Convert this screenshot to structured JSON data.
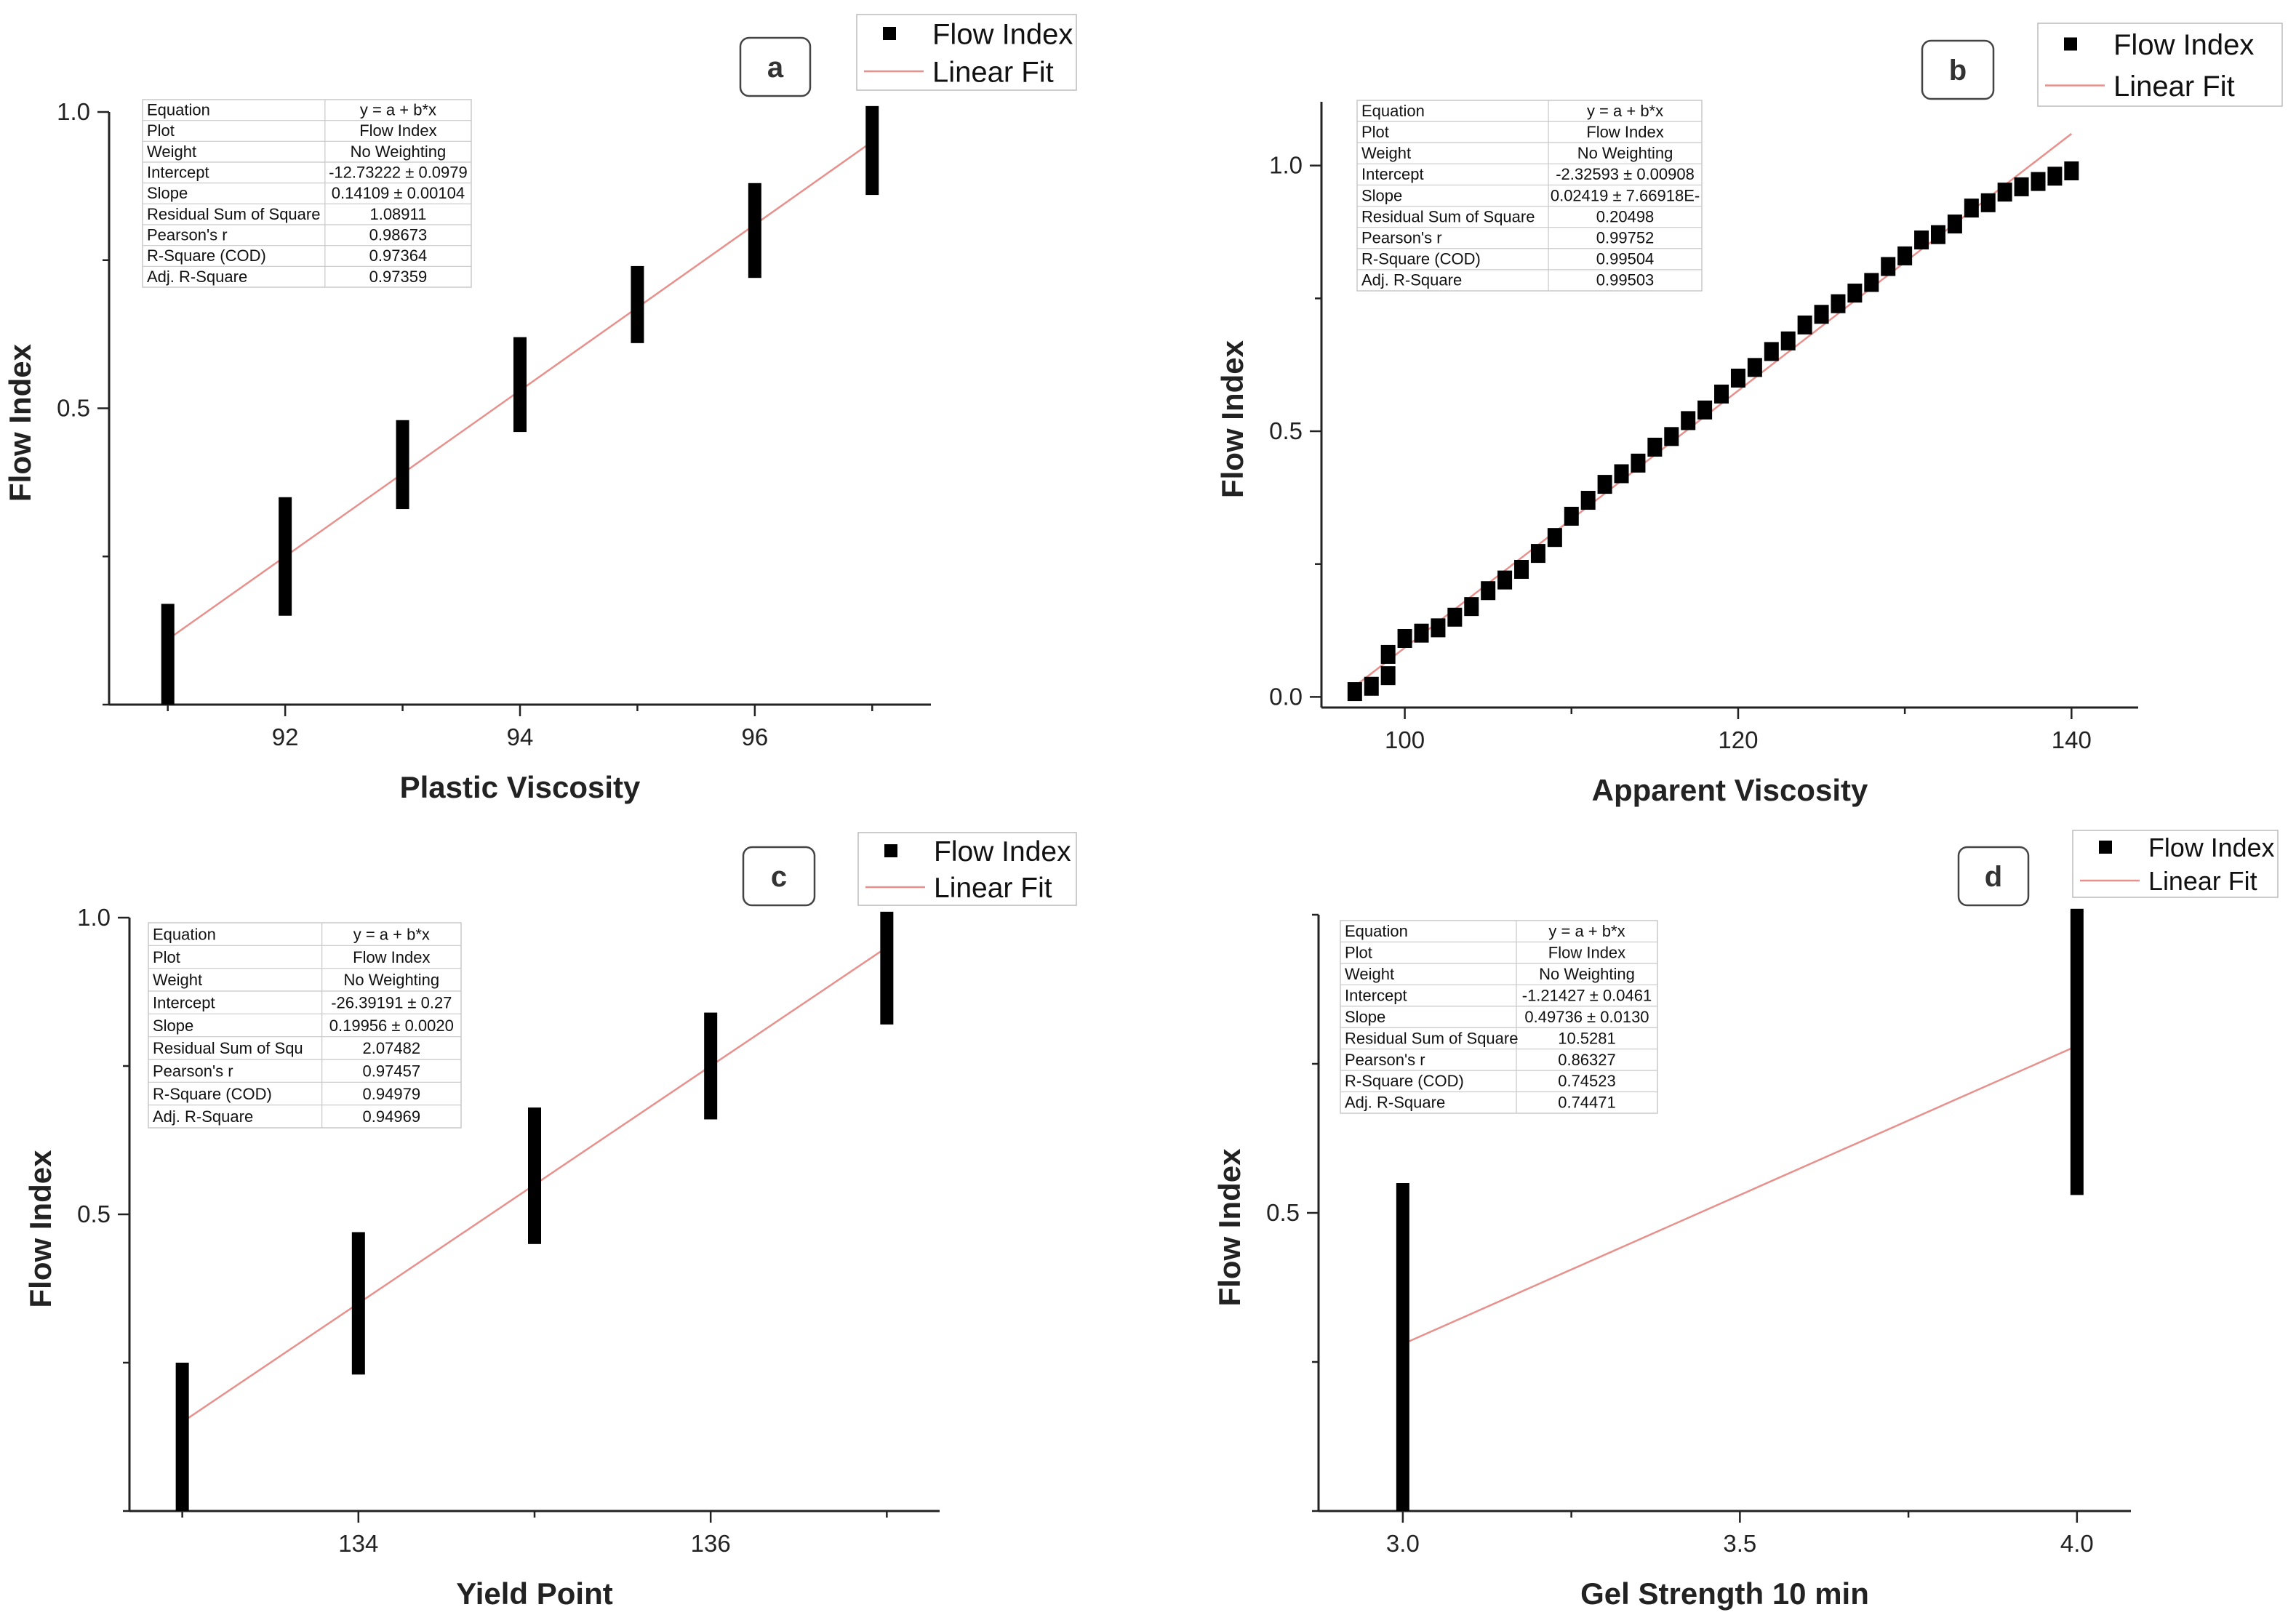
{
  "figure": {
    "colors": {
      "marker": "#000000",
      "fit_line": "#e8908c",
      "axis": "#222222",
      "table_border": "#c8c8c8",
      "panel_label_border": "#444444"
    }
  },
  "chart_data": [
    {
      "panel": "a",
      "type": "scatter",
      "xlabel": "Plastic Viscosity",
      "ylabel": "Flow Index",
      "xlim": [
        90.5,
        97.5
      ],
      "ylim": [
        0,
        1.0
      ],
      "xticks": [
        92,
        94,
        96
      ],
      "yticks": [
        0.5,
        1.0
      ],
      "marker_shape": "bar",
      "legend": {
        "position": "top-right",
        "entries": [
          "Flow Index",
          "Linear Fit"
        ]
      },
      "series": [
        {
          "name": "Flow Index",
          "x": [
            91,
            92,
            93,
            94,
            95,
            96,
            97
          ],
          "y": [
            0.09,
            0.25,
            0.4,
            0.54,
            0.67,
            0.81,
            0.95
          ],
          "y_low": [
            0.0,
            0.15,
            0.33,
            0.46,
            0.61,
            0.72,
            0.86
          ],
          "y_high": [
            0.17,
            0.35,
            0.48,
            0.62,
            0.74,
            0.88,
            1.01
          ]
        }
      ],
      "fit": {
        "x": [
          91,
          97
        ],
        "y": [
          0.11,
          0.95
        ]
      },
      "stats": [
        [
          "Equation",
          "y = a + b*x"
        ],
        [
          "Plot",
          "Flow Index"
        ],
        [
          "Weight",
          "No Weighting"
        ],
        [
          "Intercept",
          "-12.73222 ± 0.0979"
        ],
        [
          "Slope",
          "0.14109 ± 0.00104"
        ],
        [
          "Residual Sum of Square",
          "1.08911"
        ],
        [
          "Pearson's r",
          "0.98673"
        ],
        [
          "R-Square (COD)",
          "0.97364"
        ],
        [
          "Adj. R-Square",
          "0.97359"
        ]
      ]
    },
    {
      "panel": "b",
      "type": "scatter",
      "xlabel": "Apparent Viscosity",
      "ylabel": "Flow Index",
      "xlim": [
        95,
        144
      ],
      "ylim": [
        -0.02,
        1.12
      ],
      "xticks": [
        100,
        120,
        140
      ],
      "yticks": [
        0.0,
        0.5,
        1.0
      ],
      "marker_shape": "square",
      "legend": {
        "position": "top-right",
        "entries": [
          "Flow Index",
          "Linear Fit"
        ]
      },
      "series": [
        {
          "name": "Flow Index",
          "x": [
            97,
            98,
            99,
            99,
            100,
            101,
            102,
            103,
            104,
            105,
            106,
            107,
            108,
            109,
            110,
            111,
            112,
            113,
            114,
            115,
            116,
            117,
            118,
            119,
            120,
            121,
            122,
            123,
            124,
            125,
            126,
            127,
            128,
            129,
            130,
            131,
            132,
            133,
            134,
            135,
            136,
            137,
            138,
            139,
            140
          ],
          "y": [
            0.01,
            0.02,
            0.04,
            0.08,
            0.11,
            0.12,
            0.13,
            0.15,
            0.17,
            0.2,
            0.22,
            0.24,
            0.27,
            0.3,
            0.34,
            0.37,
            0.4,
            0.42,
            0.44,
            0.47,
            0.49,
            0.52,
            0.54,
            0.57,
            0.6,
            0.62,
            0.65,
            0.67,
            0.7,
            0.72,
            0.74,
            0.76,
            0.78,
            0.81,
            0.83,
            0.86,
            0.87,
            0.89,
            0.92,
            0.93,
            0.95,
            0.96,
            0.97,
            0.98,
            0.99
          ]
        }
      ],
      "fit": {
        "x": [
          97,
          140
        ],
        "y": [
          0.02,
          1.06
        ]
      },
      "stats": [
        [
          "Equation",
          "y = a + b*x"
        ],
        [
          "Plot",
          "Flow Index"
        ],
        [
          "Weight",
          "No Weighting"
        ],
        [
          "Intercept",
          "-2.32593 ± 0.00908"
        ],
        [
          "Slope",
          "0.02419 ± 7.66918E-"
        ],
        [
          "Residual Sum of Square",
          "0.20498"
        ],
        [
          "Pearson's r",
          "0.99752"
        ],
        [
          "R-Square (COD)",
          "0.99504"
        ],
        [
          "Adj. R-Square",
          "0.99503"
        ]
      ]
    },
    {
      "panel": "c",
      "type": "scatter",
      "xlabel": "Yield Point",
      "ylabel": "Flow Index",
      "xlim": [
        132.7,
        137.3
      ],
      "ylim": [
        0,
        1.0
      ],
      "xticks": [
        134,
        136
      ],
      "yticks": [
        0.5,
        1.0
      ],
      "marker_shape": "bar",
      "legend": {
        "position": "top-right",
        "entries": [
          "Flow Index",
          "Linear Fit"
        ]
      },
      "series": [
        {
          "name": "Flow Index",
          "x": [
            133,
            134,
            135,
            136,
            137
          ],
          "y": [
            0.13,
            0.33,
            0.54,
            0.75,
            0.93
          ],
          "y_low": [
            0.0,
            0.23,
            0.45,
            0.66,
            0.82
          ],
          "y_high": [
            0.25,
            0.47,
            0.68,
            0.84,
            1.01
          ]
        }
      ],
      "fit": {
        "x": [
          133,
          137
        ],
        "y": [
          0.15,
          0.95
        ]
      },
      "stats": [
        [
          "Equation",
          "y = a + b*x"
        ],
        [
          "Plot",
          "Flow Index"
        ],
        [
          "Weight",
          "No Weighting"
        ],
        [
          "Intercept",
          "-26.39191 ± 0.27"
        ],
        [
          "Slope",
          "0.19956 ± 0.0020"
        ],
        [
          "Residual Sum of Squ",
          "2.07482"
        ],
        [
          "Pearson's r",
          "0.97457"
        ],
        [
          "R-Square (COD)",
          "0.94979"
        ],
        [
          "Adj. R-Square",
          "0.94969"
        ]
      ]
    },
    {
      "panel": "d",
      "type": "scatter",
      "xlabel": "Gel Strength 10 min",
      "ylabel": "Flow Index",
      "xlim": [
        2.875,
        4.08
      ],
      "ylim": [
        0.0,
        1.0
      ],
      "xticks": [
        3.0,
        3.5,
        4.0
      ],
      "yticks": [
        0.5
      ],
      "marker_shape": "bar",
      "legend": {
        "position": "top-right",
        "entries": [
          "Flow Index",
          "Linear Fit"
        ]
      },
      "series": [
        {
          "name": "Flow Index",
          "x": [
            3.0,
            4.0
          ],
          "y": [
            0.27,
            0.76
          ],
          "y_low": [
            0.0,
            0.53
          ],
          "y_high": [
            0.55,
            1.01
          ]
        }
      ],
      "fit": {
        "x": [
          3.0,
          4.0
        ],
        "y": [
          0.28,
          0.78
        ]
      },
      "stats": [
        [
          "Equation",
          "y = a + b*x"
        ],
        [
          "Plot",
          "Flow Index"
        ],
        [
          "Weight",
          "No Weighting"
        ],
        [
          "Intercept",
          "-1.21427 ± 0.0461"
        ],
        [
          "Slope",
          "0.49736 ± 0.0130"
        ],
        [
          "Residual Sum of Square",
          "10.5281"
        ],
        [
          "Pearson's r",
          "0.86327"
        ],
        [
          "R-Square (COD)",
          "0.74523"
        ],
        [
          "Adj. R-Square",
          "0.74471"
        ]
      ]
    }
  ]
}
